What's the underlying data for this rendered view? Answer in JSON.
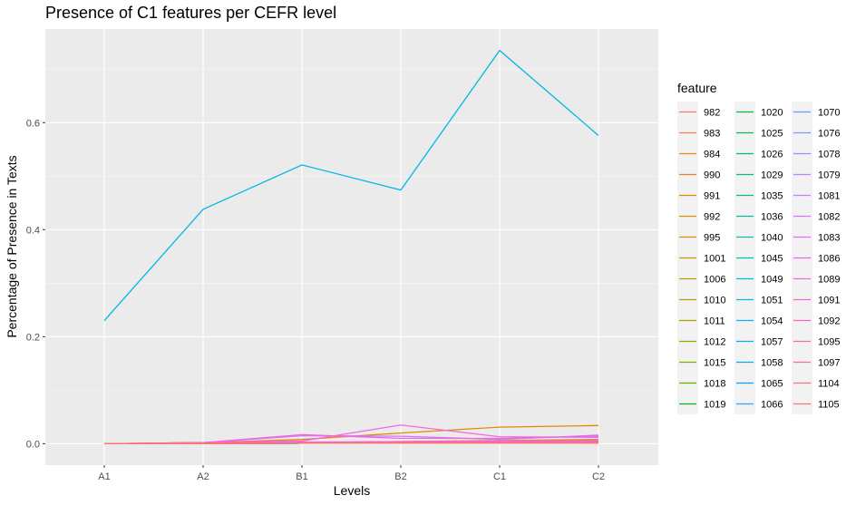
{
  "chart_data": {
    "type": "line",
    "title": "Presence of C1 features per CEFR level",
    "xlabel": "Levels",
    "ylabel": "Percentage of Presence in Texts",
    "categories": [
      "A1",
      "A2",
      "B1",
      "B2",
      "C1",
      "C2"
    ],
    "ylim": [
      -0.04,
      0.775
    ],
    "yticks": [
      0.0,
      0.2,
      0.4,
      0.6
    ],
    "ytick_labels": [
      "0.0",
      "0.2",
      "0.4",
      "0.6"
    ],
    "grid": true,
    "legend_title": "feature",
    "legend_position": "right",
    "series": [
      {
        "name": "982",
        "color": "#F8766D",
        "values": [
          0,
          0.001,
          0.002,
          0.002,
          0.003,
          0.003
        ]
      },
      {
        "name": "983",
        "color": "#F47D4D",
        "values": [
          0,
          0.001,
          0.001,
          0.002,
          0.002,
          0.002
        ]
      },
      {
        "name": "984",
        "color": "#EF8223",
        "values": [
          0,
          0.001,
          0.001,
          0.002,
          0.002,
          0.003
        ]
      },
      {
        "name": "990",
        "color": "#E88526",
        "values": [
          0,
          0.001,
          0.002,
          0.003,
          0.003,
          0.004
        ]
      },
      {
        "name": "991",
        "color": "#E38900",
        "values": [
          0,
          0.002,
          0.008,
          0.02,
          0.031,
          0.034
        ]
      },
      {
        "name": "992",
        "color": "#DB8E00",
        "values": [
          0,
          0.001,
          0.002,
          0.003,
          0.004,
          0.005
        ]
      },
      {
        "name": "995",
        "color": "#D39200",
        "values": [
          0,
          0.001,
          0.001,
          0.002,
          0.002,
          0.002
        ]
      },
      {
        "name": "1001",
        "color": "#C99800",
        "values": [
          0,
          0.001,
          0.002,
          0.004,
          0.006,
          0.008
        ]
      },
      {
        "name": "1006",
        "color": "#BE9C00",
        "values": [
          0,
          0.0,
          0.001,
          0.001,
          0.002,
          0.002
        ]
      },
      {
        "name": "1010",
        "color": "#B3A000",
        "values": [
          0,
          0.001,
          0.001,
          0.002,
          0.003,
          0.003
        ]
      },
      {
        "name": "1011",
        "color": "#A3A500",
        "values": [
          0,
          0.0,
          0.001,
          0.001,
          0.001,
          0.002
        ]
      },
      {
        "name": "1012",
        "color": "#93AA00",
        "values": [
          0,
          0.001,
          0.001,
          0.002,
          0.002,
          0.003
        ]
      },
      {
        "name": "1015",
        "color": "#7CAE00",
        "values": [
          0,
          0.0,
          0.001,
          0.001,
          0.002,
          0.002
        ]
      },
      {
        "name": "1018",
        "color": "#5BB300",
        "values": [
          0,
          0.001,
          0.001,
          0.002,
          0.002,
          0.002
        ]
      },
      {
        "name": "1019",
        "color": "#00B81F",
        "values": [
          0,
          0.0,
          0.001,
          0.001,
          0.001,
          0.001
        ]
      },
      {
        "name": "1020",
        "color": "#00BA38",
        "values": [
          0,
          0.001,
          0.002,
          0.002,
          0.003,
          0.003
        ]
      },
      {
        "name": "1025",
        "color": "#00BC59",
        "values": [
          0,
          0.0,
          0.001,
          0.001,
          0.001,
          0.002
        ]
      },
      {
        "name": "1026",
        "color": "#00BD6E",
        "values": [
          0,
          0.001,
          0.001,
          0.002,
          0.002,
          0.002
        ]
      },
      {
        "name": "1029",
        "color": "#00BE80",
        "values": [
          0,
          0.0,
          0.001,
          0.001,
          0.001,
          0.001
        ]
      },
      {
        "name": "1035",
        "color": "#00C08B",
        "values": [
          0,
          0.001,
          0.001,
          0.001,
          0.002,
          0.002
        ]
      },
      {
        "name": "1036",
        "color": "#00C19A",
        "values": [
          0,
          0.0,
          0.001,
          0.001,
          0.001,
          0.001
        ]
      },
      {
        "name": "1040",
        "color": "#00C0B8",
        "values": [
          0,
          0.001,
          0.001,
          0.001,
          0.002,
          0.002
        ]
      },
      {
        "name": "1045",
        "color": "#00BFC4",
        "values": [
          0,
          0.0,
          0.001,
          0.001,
          0.001,
          0.001
        ]
      },
      {
        "name": "1049",
        "color": "#00BCD6",
        "values": [
          0,
          0.001,
          0.001,
          0.002,
          0.002,
          0.002
        ]
      },
      {
        "name": "1051",
        "color": "#00BAE0",
        "values": [
          0,
          0.0,
          0.001,
          0.001,
          0.001,
          0.001
        ]
      },
      {
        "name": "1054",
        "color": "#00B8E7",
        "values": [
          0.23,
          0.438,
          0.521,
          0.474,
          0.735,
          0.576
        ]
      },
      {
        "name": "1057",
        "color": "#00B4EF",
        "values": [
          0,
          0.001,
          0.001,
          0.001,
          0.002,
          0.002
        ]
      },
      {
        "name": "1058",
        "color": "#00B0F6",
        "values": [
          0,
          0.0,
          0.001,
          0.001,
          0.001,
          0.001
        ]
      },
      {
        "name": "1065",
        "color": "#00A9FF",
        "values": [
          0,
          0.001,
          0.001,
          0.002,
          0.002,
          0.002
        ]
      },
      {
        "name": "1066",
        "color": "#35A2FF",
        "values": [
          0,
          0.0,
          0.001,
          0.001,
          0.001,
          0.001
        ]
      },
      {
        "name": "1070",
        "color": "#619CFF",
        "values": [
          0,
          0.001,
          0.001,
          0.002,
          0.002,
          0.002
        ]
      },
      {
        "name": "1076",
        "color": "#8494FF",
        "values": [
          0,
          0.0,
          0.001,
          0.001,
          0.001,
          0.001
        ]
      },
      {
        "name": "1078",
        "color": "#9F8CFF",
        "values": [
          0,
          0.001,
          0.002,
          0.002,
          0.003,
          0.003
        ]
      },
      {
        "name": "1079",
        "color": "#B983FF",
        "values": [
          0,
          0.001,
          0.002,
          0.002,
          0.003,
          0.003
        ]
      },
      {
        "name": "1081",
        "color": "#C77CFF",
        "values": [
          0,
          0.002,
          0.015,
          0.014,
          0.008,
          0.016
        ]
      },
      {
        "name": "1082",
        "color": "#D774FD",
        "values": [
          0,
          0.001,
          0.002,
          0.003,
          0.004,
          0.005
        ]
      },
      {
        "name": "1083",
        "color": "#E76BF3",
        "values": [
          0,
          0.001,
          0.003,
          0.004,
          0.005,
          0.006
        ]
      },
      {
        "name": "1086",
        "color": "#F166E8",
        "values": [
          0,
          0.002,
          0.005,
          0.035,
          0.013,
          0.012
        ]
      },
      {
        "name": "1089",
        "color": "#F962DD",
        "values": [
          0,
          0.002,
          0.017,
          0.01,
          0.01,
          0.014
        ]
      },
      {
        "name": "1091",
        "color": "#FD61D1",
        "values": [
          0,
          0.001,
          0.002,
          0.003,
          0.004,
          0.004
        ]
      },
      {
        "name": "1092",
        "color": "#FF62BC",
        "values": [
          0,
          0.001,
          0.002,
          0.002,
          0.003,
          0.003
        ]
      },
      {
        "name": "1095",
        "color": "#FF65AC",
        "values": [
          0,
          0.001,
          0.001,
          0.002,
          0.002,
          0.002
        ]
      },
      {
        "name": "1097",
        "color": "#FF6A98",
        "values": [
          0,
          0.0,
          0.001,
          0.001,
          0.002,
          0.002
        ]
      },
      {
        "name": "1104",
        "color": "#FC717F",
        "values": [
          0,
          0.001,
          0.001,
          0.002,
          0.002,
          0.002
        ]
      },
      {
        "name": "1105",
        "color": "#F8766D",
        "values": [
          0,
          0.0,
          0.001,
          0.001,
          0.001,
          0.001
        ]
      }
    ]
  }
}
